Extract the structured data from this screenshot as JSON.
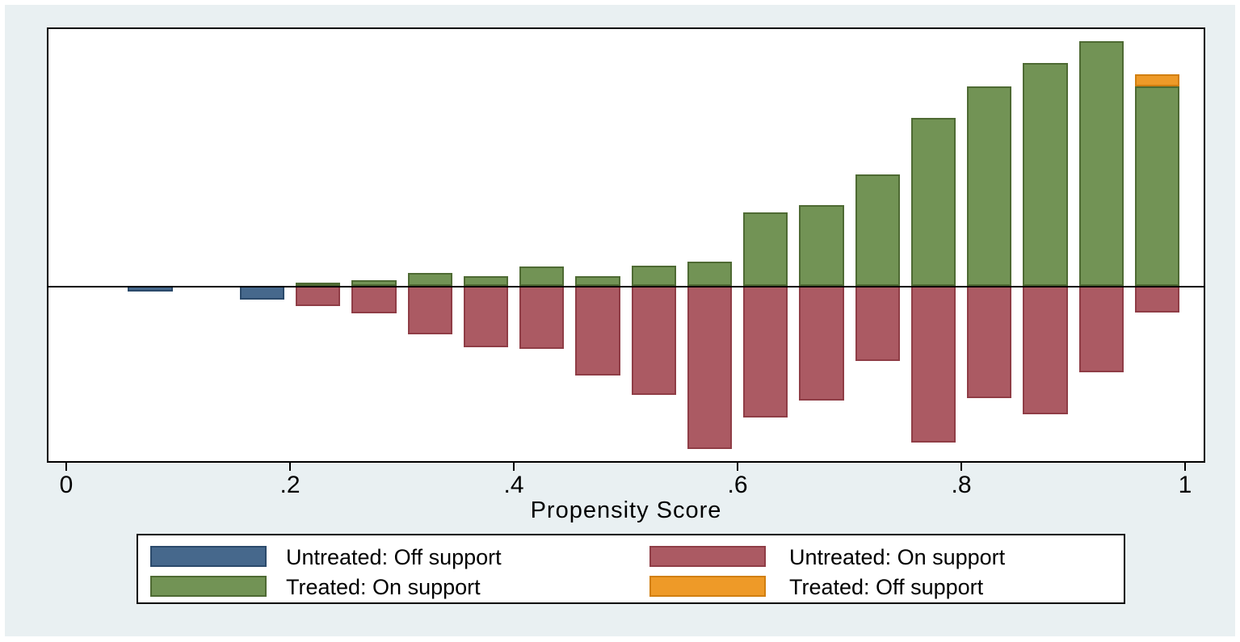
{
  "figure": {
    "type": "Stata psgraph propensity-score overlap histogram",
    "background": "#ffffff",
    "panel_background": "#e9f0f2",
    "plot_background": "#ffffff",
    "frame_color": "#000000"
  },
  "x_axis": {
    "title": "Propensity Score",
    "ticks": [
      {
        "value": 0,
        "label": "0"
      },
      {
        "value": 0.2,
        "label": ".2"
      },
      {
        "value": 0.4,
        "label": ".4"
      },
      {
        "value": 0.6,
        "label": ".6"
      },
      {
        "value": 0.8,
        "label": ".8"
      },
      {
        "value": 1,
        "label": "1"
      }
    ]
  },
  "colors": {
    "blue": {
      "fill": "#46688c",
      "stroke": "#2b4a6b"
    },
    "red": {
      "fill": "#ab5a63",
      "stroke": "#8f3d46"
    },
    "green": {
      "fill": "#729355",
      "stroke": "#4e6a33"
    },
    "orange": {
      "fill": "#ee9a28",
      "stroke": "#d17f10"
    }
  },
  "legend": {
    "items": [
      {
        "key": "untreated_off",
        "color": "blue",
        "label": "Untreated: Off support"
      },
      {
        "key": "untreated_on",
        "color": "red",
        "label": "Untreated: On support"
      },
      {
        "key": "treated_on",
        "color": "green",
        "label": "Treated: On support"
      },
      {
        "key": "treated_off",
        "color": "orange",
        "label": "Treated: Off support"
      }
    ]
  },
  "chart_data": {
    "type": "bar",
    "subtype": "diverging propensity-score histogram: treated plotted upward, untreated plotted downward from a common baseline",
    "title": "",
    "xlabel": "Propensity Score",
    "x_range": [
      0,
      1
    ],
    "bin_width": 0.05,
    "x_tick_labels": [
      "0",
      ".2",
      ".4",
      ".6",
      ".8",
      "1"
    ],
    "y_axis": "no y tick labels in original figure; bar values below are relative frequencies measured as bar heights in screenshot pixels",
    "direction": {
      "treated_on": "up",
      "treated_off": "up",
      "untreated_on": "down",
      "untreated_off": "down"
    },
    "bins": [
      {
        "bin_start": 0.05,
        "untreated_off": 7
      },
      {
        "bin_start": 0.15,
        "untreated_off": 17
      },
      {
        "bin_start": 0.2,
        "treated_on": 4,
        "untreated_on": 25
      },
      {
        "bin_start": 0.25,
        "treated_on": 7,
        "untreated_on": 34
      },
      {
        "bin_start": 0.3,
        "treated_on": 16,
        "untreated_on": 60
      },
      {
        "bin_start": 0.35,
        "treated_on": 12,
        "untreated_on": 76
      },
      {
        "bin_start": 0.4,
        "treated_on": 24,
        "untreated_on": 78
      },
      {
        "bin_start": 0.45,
        "treated_on": 12,
        "untreated_on": 111
      },
      {
        "bin_start": 0.5,
        "treated_on": 25,
        "untreated_on": 135
      },
      {
        "bin_start": 0.55,
        "treated_on": 30,
        "untreated_on": 202
      },
      {
        "bin_start": 0.6,
        "treated_on": 91,
        "untreated_on": 163
      },
      {
        "bin_start": 0.65,
        "treated_on": 100,
        "untreated_on": 142
      },
      {
        "bin_start": 0.7,
        "treated_on": 138,
        "untreated_on": 93
      },
      {
        "bin_start": 0.75,
        "treated_on": 208,
        "untreated_on": 194
      },
      {
        "bin_start": 0.8,
        "treated_on": 247,
        "untreated_on": 139
      },
      {
        "bin_start": 0.85,
        "treated_on": 276,
        "untreated_on": 159
      },
      {
        "bin_start": 0.9,
        "treated_on": 303,
        "untreated_on": 107
      },
      {
        "bin_start": 0.95,
        "treated_on": 247,
        "treated_off": 15,
        "untreated_on": 33
      }
    ]
  }
}
